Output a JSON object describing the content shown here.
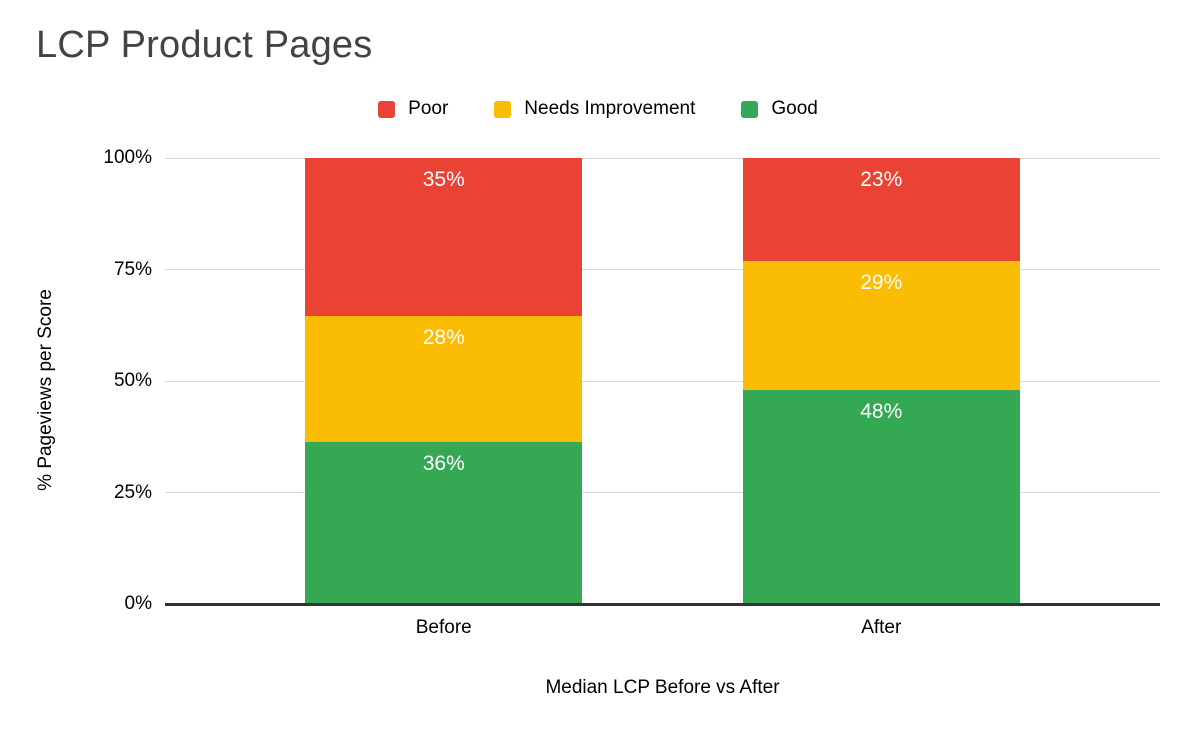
{
  "title": "LCP Product Pages",
  "legend": {
    "items": [
      {
        "label": "Poor",
        "color": "#EA4335"
      },
      {
        "label": "Needs Improvement",
        "color": "#FBBC04"
      },
      {
        "label": "Good",
        "color": "#34A853"
      }
    ]
  },
  "chart_data": {
    "type": "bar",
    "stacked": true,
    "title": "LCP Product Pages",
    "xlabel": "Median LCP Before vs After",
    "ylabel": "% Pageviews per Score",
    "categories": [
      "Before",
      "After"
    ],
    "series": [
      {
        "name": "Poor",
        "color": "#EA4335",
        "values": [
          35,
          23
        ]
      },
      {
        "name": "Needs Improvement",
        "color": "#FBBC04",
        "values": [
          28,
          29
        ]
      },
      {
        "name": "Good",
        "color": "#34A853",
        "values": [
          36,
          48
        ]
      }
    ],
    "value_suffix": "%",
    "y_ticks": [
      0,
      25,
      50,
      75,
      100
    ],
    "y_tick_labels": [
      "0%",
      "25%",
      "50%",
      "75%",
      "100%"
    ],
    "ylim": [
      0,
      100
    ],
    "grid": true,
    "legend_position": "top"
  },
  "colors": {
    "background": "#FFFFFF",
    "title_text": "#434343",
    "axis_text": "#000000",
    "bar_label_text": "#FFFFFF",
    "gridline": "#D9D9D9",
    "axis_line": "#333333"
  }
}
